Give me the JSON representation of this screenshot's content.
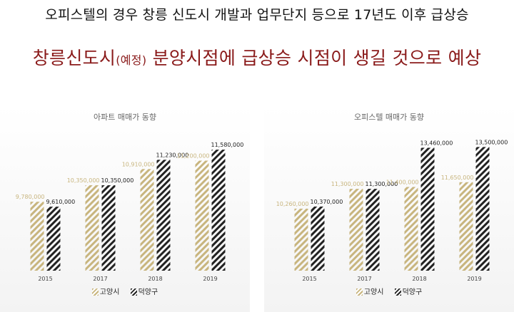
{
  "headline": {
    "line1": "오피스텔의 경우 창릉 신도시 개발과 업무단지 등으로 17년도 이후 급상승",
    "line2_part1": "창릉신도시",
    "line2_small": "(예정)",
    "line2_part2": " 분양시점에 급상승 시점이 생길 것으로 예상"
  },
  "colors": {
    "goyang": "#c8b57e",
    "deogyang": "#222222",
    "headline_accent": "#8a1a1a"
  },
  "chart_data": [
    {
      "type": "bar",
      "title": "아파트 매매가 동향",
      "categories": [
        "2015",
        "2017",
        "2018",
        "2019"
      ],
      "series": [
        {
          "name": "고양시",
          "values": [
            9780000,
            10350000,
            10910000,
            11200000
          ],
          "labels": [
            "9,780,000",
            "10,350,000",
            "10,910,000",
            "11,200,000"
          ]
        },
        {
          "name": "덕양구",
          "values": [
            9610000,
            10350000,
            11230000,
            11580000
          ],
          "labels": [
            "9,610,000",
            "10,350,000",
            "11,230,000",
            "11,580,000"
          ]
        }
      ],
      "ylim": [
        7400000,
        12000000
      ],
      "legend": "bottom-center",
      "grid": false
    },
    {
      "type": "bar",
      "title": "오피스텔 매매가 동향",
      "categories": [
        "2015",
        "2017",
        "2018",
        "2019"
      ],
      "series": [
        {
          "name": "고양시",
          "values": [
            10260000,
            11300000,
            11400000,
            11650000
          ],
          "labels": [
            "10,260,000",
            "11,300,000",
            "11,400,000",
            "11,650,000"
          ]
        },
        {
          "name": "덕양구",
          "values": [
            10370000,
            11300000,
            13460000,
            13500000
          ],
          "labels": [
            "10,370,000",
            "11,300,000",
            "13,460,000",
            "13,500,000"
          ]
        }
      ],
      "ylim": [
        7000000,
        14000000
      ],
      "legend": "bottom-center",
      "grid": false
    }
  ]
}
